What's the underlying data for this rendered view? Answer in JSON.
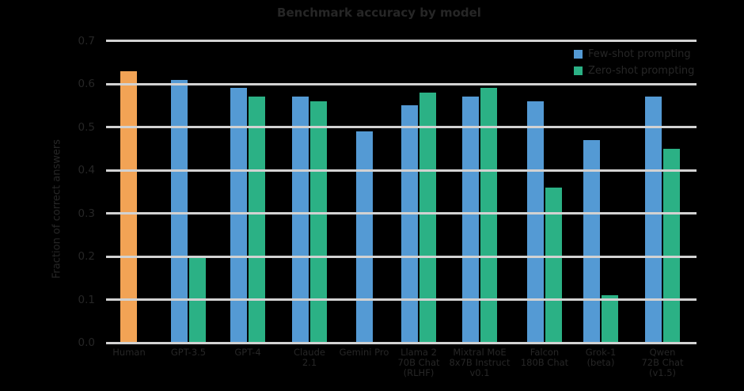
{
  "title": "Benchmark accuracy by model",
  "y_axis_label": "Fraction of correct answers",
  "legend": {
    "items": [
      {
        "label": "Few-shot prompting",
        "color": "#549AD4"
      },
      {
        "label": "Zero-shot prompting",
        "color": "#2BB185"
      }
    ]
  },
  "colors": {
    "human_bar": "#F2A355",
    "few_shot_bar": "#549AD4",
    "zero_shot_bar": "#2BB185",
    "gridline": "#D2D2D2",
    "text": "#262626",
    "background": "#000000"
  },
  "chart_data": {
    "type": "bar",
    "title": "Benchmark accuracy by model",
    "xlabel": "",
    "ylabel": "Fraction of correct answers",
    "ylim": [
      0,
      0.7
    ],
    "yticks": [
      "0.0",
      "0.1",
      "0.2",
      "0.3",
      "0.4",
      "0.5",
      "0.6",
      "0.7"
    ],
    "grid": true,
    "gridlines_over_bars": true,
    "legend_position": "upper right",
    "categories": [
      "Human",
      "GPT-3.5",
      "GPT-4",
      "Claude\n2.1",
      "Gemini Pro",
      "Llama 2\n70B Chat\n(RLHF)",
      "Mixtral MoE\n8x7B Instruct\nv0.1",
      "Falcon\n180B Chat",
      "Grok-1\n(beta)",
      "Qwen\n72B Chat\n(v1.5)"
    ],
    "series": [
      {
        "name": "Human",
        "color": "#F2A355",
        "values": [
          0.63,
          null,
          null,
          null,
          null,
          null,
          null,
          null,
          null,
          null
        ]
      },
      {
        "name": "Few-shot prompting",
        "color": "#549AD4",
        "values": [
          null,
          0.61,
          0.59,
          0.57,
          0.49,
          0.55,
          0.57,
          0.56,
          0.47,
          0.57
        ]
      },
      {
        "name": "Zero-shot prompting",
        "color": "#2BB185",
        "values": [
          null,
          0.2,
          0.57,
          0.56,
          null,
          0.58,
          0.59,
          0.36,
          0.11,
          0.45
        ]
      }
    ]
  }
}
